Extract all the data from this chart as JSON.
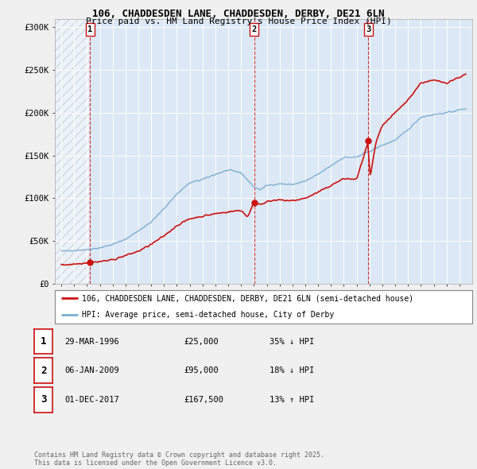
{
  "title1": "106, CHADDESDEN LANE, CHADDESDEN, DERBY, DE21 6LN",
  "title2": "Price paid vs. HM Land Registry's House Price Index (HPI)",
  "background_color": "#f0f0f0",
  "plot_bg_color": "#dce8f5",
  "grid_color": "#ffffff",
  "red_line_label": "106, CHADDESDEN LANE, CHADDESDEN, DERBY, DE21 6LN (semi-detached house)",
  "blue_line_label": "HPI: Average price, semi-detached house, City of Derby",
  "footnote": "Contains HM Land Registry data © Crown copyright and database right 2025.\nThis data is licensed under the Open Government Licence v3.0.",
  "transactions": [
    {
      "num": 1,
      "date": "29-MAR-1996",
      "price": 25000,
      "hpi_relation": "35% ↓ HPI",
      "year": 1996.24
    },
    {
      "num": 2,
      "date": "06-JAN-2009",
      "price": 95000,
      "hpi_relation": "18% ↓ HPI",
      "year": 2009.01
    },
    {
      "num": 3,
      "date": "01-DEC-2017",
      "price": 167500,
      "hpi_relation": "13% ↑ HPI",
      "year": 2017.92
    }
  ],
  "ylim": [
    0,
    310000
  ],
  "yticks": [
    0,
    50000,
    100000,
    150000,
    200000,
    250000,
    300000
  ],
  "ytick_labels": [
    "£0",
    "£50K",
    "£100K",
    "£150K",
    "£200K",
    "£250K",
    "£300K"
  ],
  "xlim_start": 1993.5,
  "xlim_end": 2026.0,
  "hpi_anchors": [
    [
      1994.0,
      38000
    ],
    [
      1995.0,
      39000
    ],
    [
      1996.0,
      40000
    ],
    [
      1997.0,
      42000
    ],
    [
      1998.0,
      46000
    ],
    [
      1999.0,
      52000
    ],
    [
      2000.0,
      62000
    ],
    [
      2001.0,
      72000
    ],
    [
      2002.0,
      88000
    ],
    [
      2003.0,
      105000
    ],
    [
      2004.0,
      118000
    ],
    [
      2005.0,
      122000
    ],
    [
      2006.0,
      128000
    ],
    [
      2007.0,
      133000
    ],
    [
      2008.0,
      130000
    ],
    [
      2009.0,
      113000
    ],
    [
      2009.5,
      110000
    ],
    [
      2010.0,
      115000
    ],
    [
      2011.0,
      117000
    ],
    [
      2012.0,
      116000
    ],
    [
      2013.0,
      120000
    ],
    [
      2014.0,
      128000
    ],
    [
      2015.0,
      138000
    ],
    [
      2016.0,
      148000
    ],
    [
      2017.0,
      148000
    ],
    [
      2018.0,
      155000
    ],
    [
      2019.0,
      162000
    ],
    [
      2020.0,
      168000
    ],
    [
      2021.0,
      180000
    ],
    [
      2022.0,
      195000
    ],
    [
      2023.0,
      198000
    ],
    [
      2024.0,
      200000
    ],
    [
      2025.5,
      205000
    ]
  ],
  "red_anchors": [
    [
      1994.0,
      22000
    ],
    [
      1995.0,
      23000
    ],
    [
      1996.24,
      25000
    ],
    [
      1997.0,
      26000
    ],
    [
      1998.0,
      28000
    ],
    [
      1999.0,
      33000
    ],
    [
      2000.0,
      38000
    ],
    [
      2001.0,
      46000
    ],
    [
      2002.0,
      56000
    ],
    [
      2003.0,
      68000
    ],
    [
      2004.0,
      76000
    ],
    [
      2005.0,
      79000
    ],
    [
      2006.0,
      82000
    ],
    [
      2007.0,
      84000
    ],
    [
      2008.0,
      86000
    ],
    [
      2008.5,
      78000
    ],
    [
      2009.01,
      95000
    ],
    [
      2009.5,
      93000
    ],
    [
      2010.0,
      96000
    ],
    [
      2011.0,
      98000
    ],
    [
      2012.0,
      97000
    ],
    [
      2013.0,
      100000
    ],
    [
      2014.0,
      107000
    ],
    [
      2015.0,
      115000
    ],
    [
      2016.0,
      123000
    ],
    [
      2017.0,
      122000
    ],
    [
      2017.92,
      167500
    ],
    [
      2018.0,
      120000
    ],
    [
      2018.5,
      165000
    ],
    [
      2019.0,
      185000
    ],
    [
      2020.0,
      200000
    ],
    [
      2021.0,
      215000
    ],
    [
      2022.0,
      235000
    ],
    [
      2023.0,
      238000
    ],
    [
      2024.0,
      235000
    ],
    [
      2025.5,
      245000
    ]
  ]
}
